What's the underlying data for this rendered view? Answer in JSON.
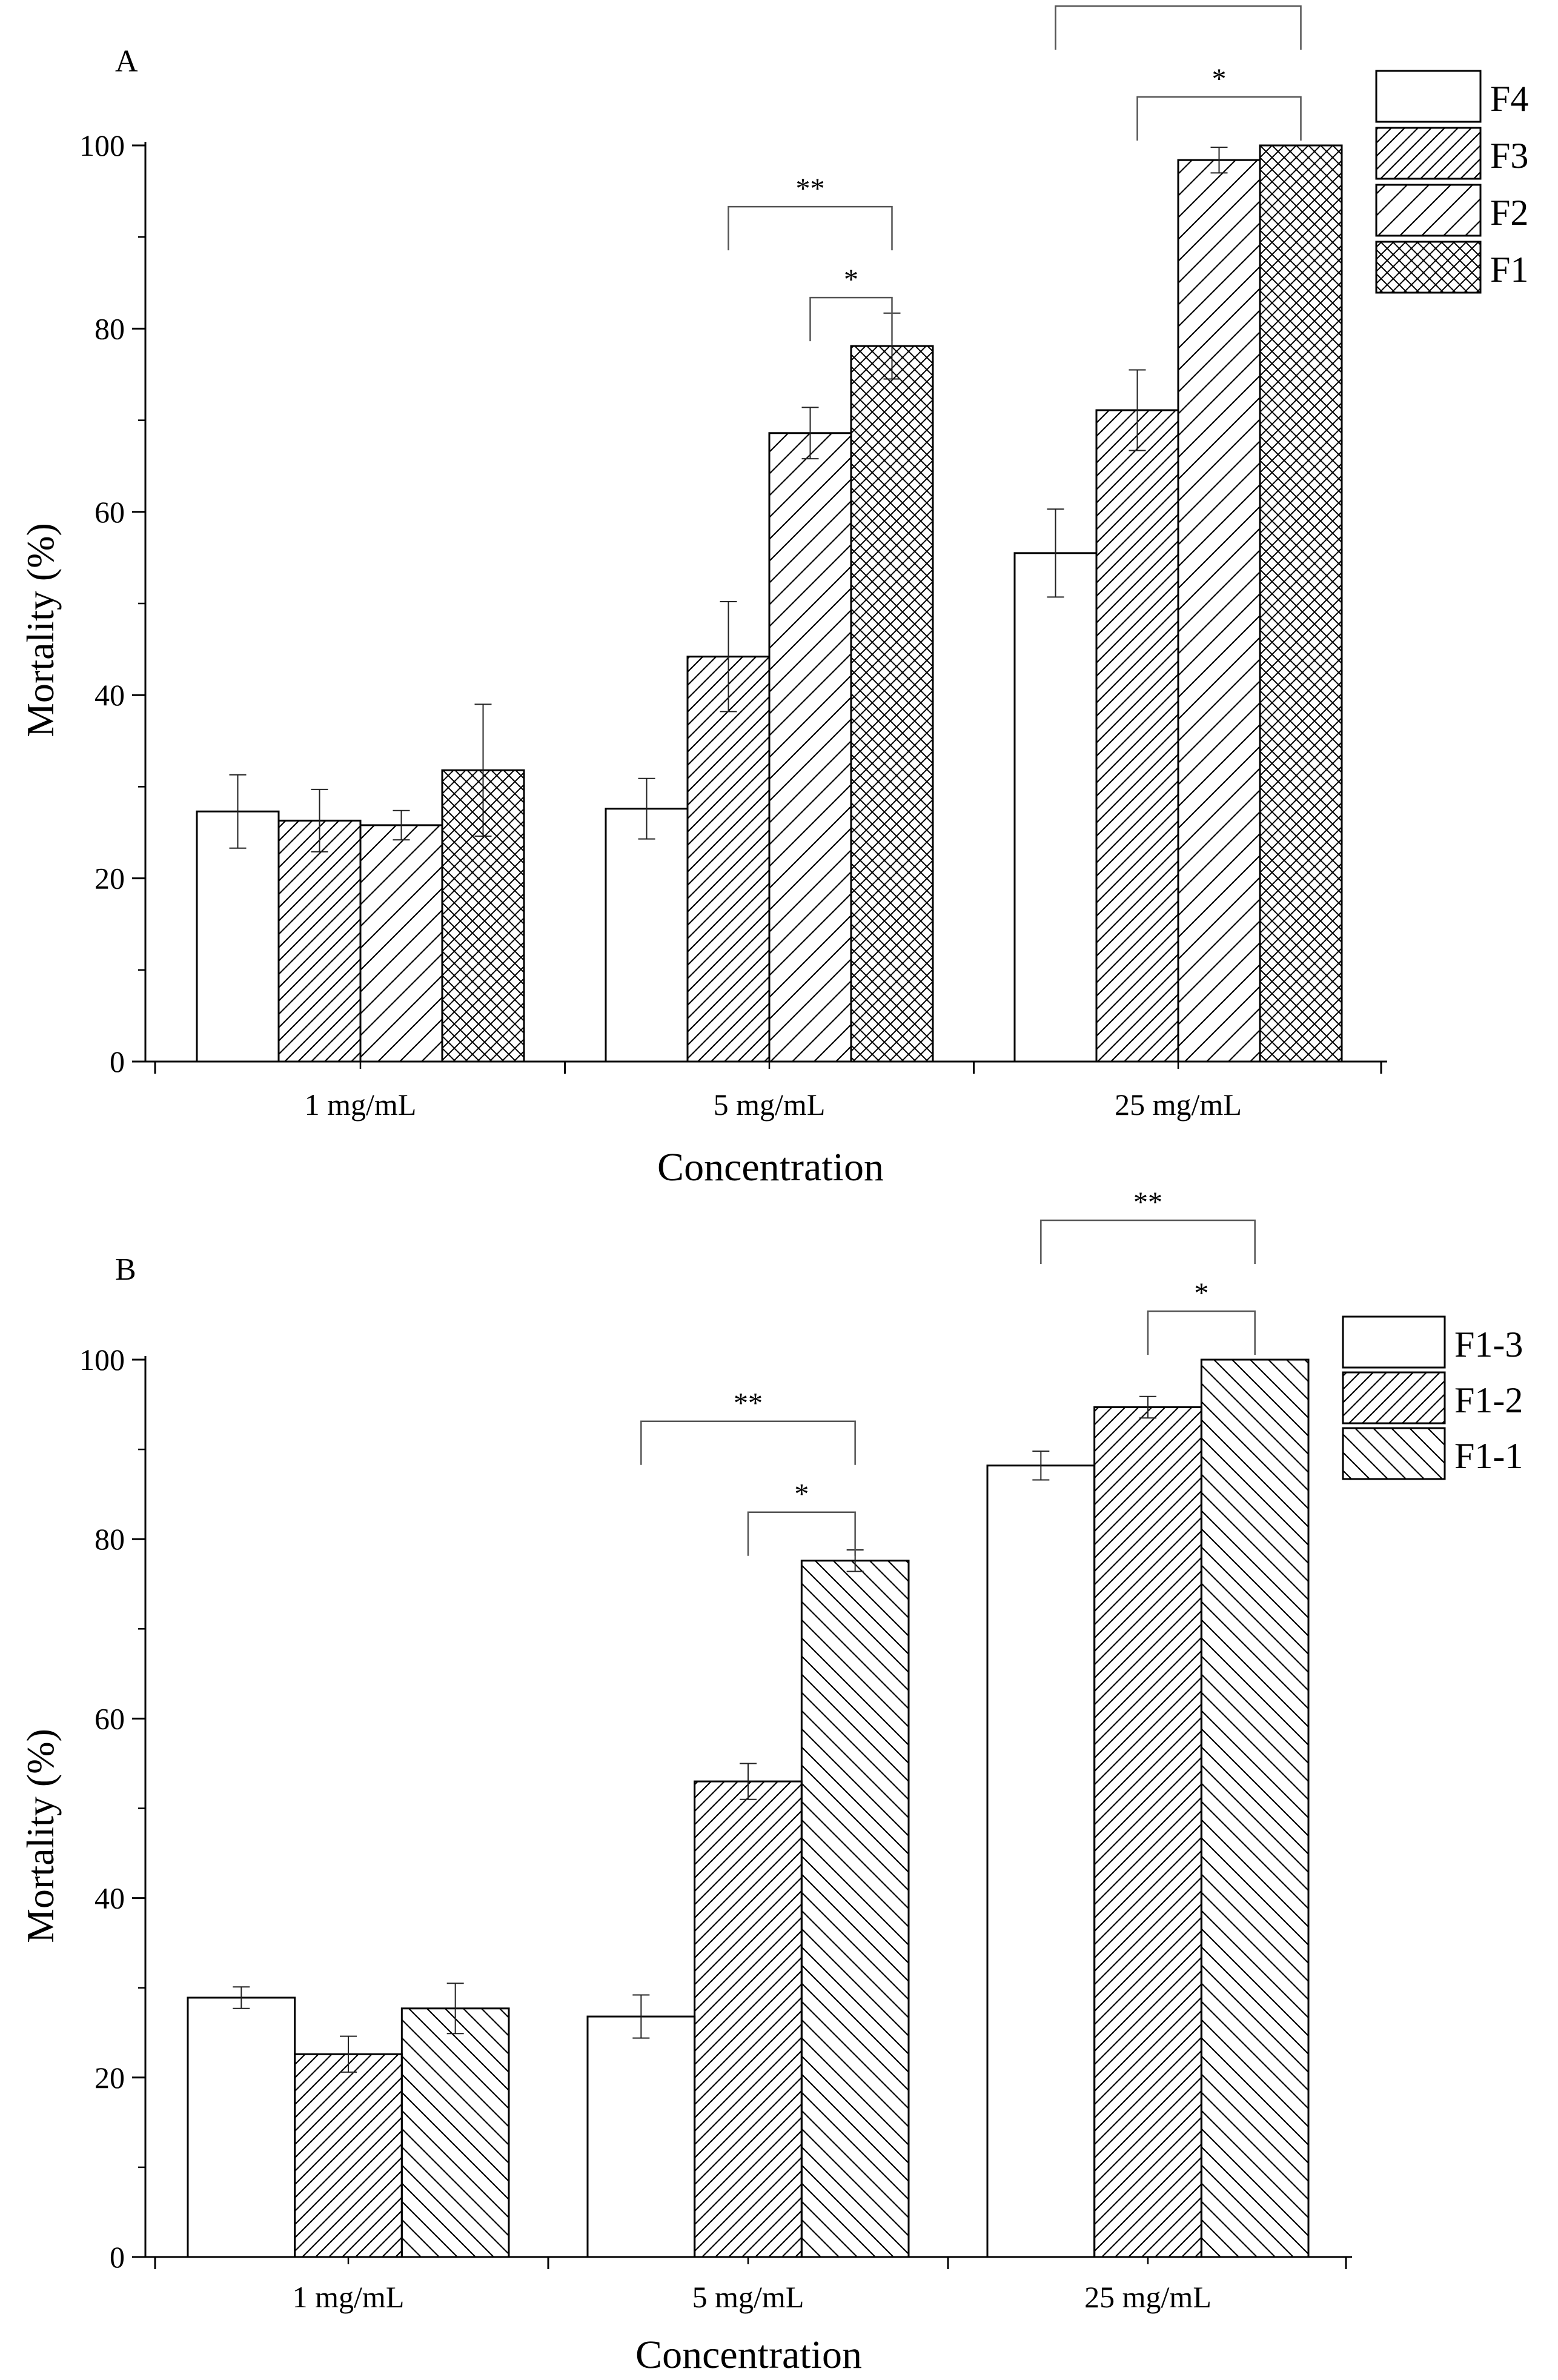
{
  "chart_data": [
    {
      "panel_label": "A",
      "type": "bar",
      "xlabel": "Concentration",
      "ylabel": "Mortality (%)",
      "ylim": [
        0,
        100
      ],
      "yticks": [
        0,
        20,
        40,
        60,
        80,
        100
      ],
      "grid": false,
      "legend": "top-right",
      "categories": [
        "1 mg/mL",
        "5 mg/mL",
        "25 mg/mL"
      ],
      "series": [
        {
          "name": "F4",
          "pattern": "none",
          "values": [
            27.3,
            27.6,
            55.5
          ],
          "errors": [
            4.0,
            3.3,
            4.8
          ]
        },
        {
          "name": "F3",
          "pattern": "hatch-dense",
          "values": [
            26.3,
            44.2,
            71.1
          ],
          "errors": [
            3.4,
            6.0,
            4.4
          ]
        },
        {
          "name": "F2",
          "pattern": "hatch-sparse",
          "values": [
            25.8,
            68.6,
            98.4
          ],
          "errors": [
            1.6,
            2.8,
            1.4
          ]
        },
        {
          "name": "F1",
          "pattern": "crosshatch",
          "values": [
            31.8,
            78.1,
            100
          ],
          "errors": [
            7.2,
            3.6,
            0
          ]
        }
      ],
      "significance": [
        {
          "category": "5 mg/mL",
          "from": "F3",
          "to": "F1",
          "label": "**"
        },
        {
          "category": "5 mg/mL",
          "from": "F2",
          "to": "F1",
          "label": "*"
        },
        {
          "category": "25 mg/mL",
          "from": "F4",
          "to": "F1",
          "label": "**"
        },
        {
          "category": "25 mg/mL",
          "from": "F3",
          "to": "F1",
          "label": "*"
        }
      ]
    },
    {
      "panel_label": "B",
      "type": "bar",
      "xlabel": "Concentration",
      "ylabel": "Mortality (%)",
      "ylim": [
        0,
        100
      ],
      "yticks": [
        0,
        20,
        40,
        60,
        80,
        100
      ],
      "grid": false,
      "legend": "top-right",
      "categories": [
        "1 mg/mL",
        "5 mg/mL",
        "25 mg/mL"
      ],
      "series": [
        {
          "name": "F1-3",
          "pattern": "none",
          "values": [
            28.9,
            26.8,
            88.2
          ],
          "errors": [
            1.2,
            2.4,
            1.6
          ]
        },
        {
          "name": "F1-2",
          "pattern": "hatch-dense",
          "values": [
            22.6,
            53.0,
            94.7
          ],
          "errors": [
            2.0,
            2.0,
            1.2
          ]
        },
        {
          "name": "F1-1",
          "pattern": "backhatch",
          "values": [
            27.7,
            77.6,
            100
          ],
          "errors": [
            2.8,
            1.2,
            0
          ]
        }
      ],
      "significance": [
        {
          "category": "5 mg/mL",
          "from": "F1-3",
          "to": "F1-1",
          "label": "**"
        },
        {
          "category": "5 mg/mL",
          "from": "F1-2",
          "to": "F1-1",
          "label": "*"
        },
        {
          "category": "25 mg/mL",
          "from": "F1-3",
          "to": "F1-1",
          "label": "**"
        },
        {
          "category": "25 mg/mL",
          "from": "F1-2",
          "to": "F1-1",
          "label": "*"
        }
      ]
    }
  ]
}
